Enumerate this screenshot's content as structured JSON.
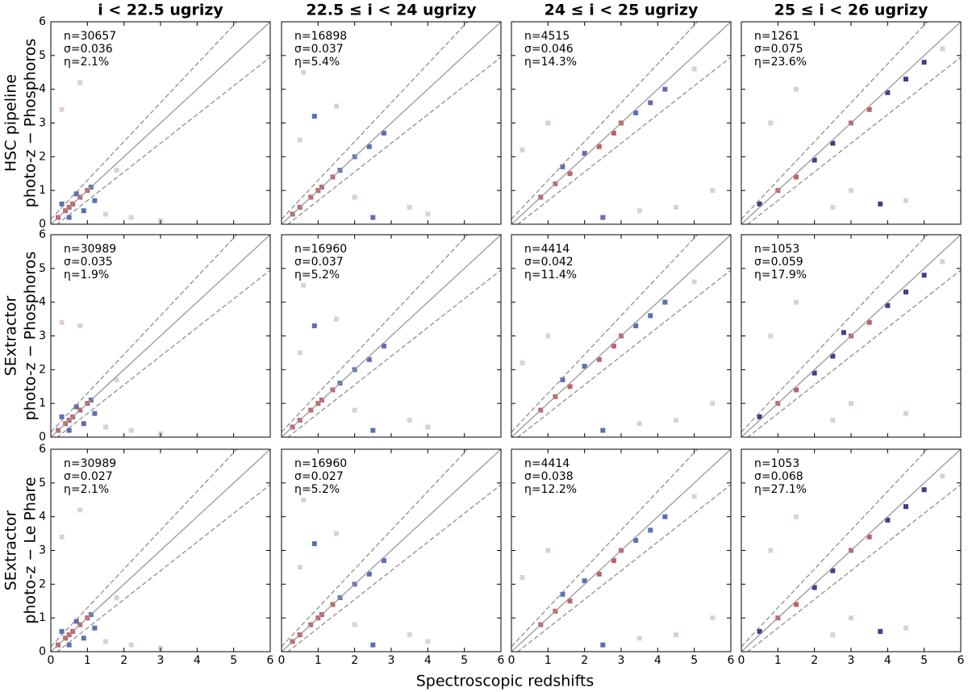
{
  "xlabel": "Spectroscopic redshifts",
  "chart_data": [
    {
      "type": "hexbin",
      "title": "i < 22.5 ugrizy",
      "ylabel": [
        "HSC pipeline",
        "photo-z − Phosphoros"
      ],
      "stats": [
        "n=30657",
        "σ=0.036",
        "η=2.1%"
      ],
      "xlim": [
        0,
        6
      ],
      "ylim": [
        0,
        6
      ],
      "xticks": [
        0,
        1,
        2,
        3,
        4,
        5,
        6
      ],
      "yticks": [
        0,
        1,
        2,
        3,
        4,
        5,
        6
      ],
      "xtick_labels": false,
      "ytick_labels": true,
      "outlier_cut": 0.15,
      "series": [
        {
          "color": "#dccfdc",
          "x": [
            1.5,
            2.2,
            0.8,
            3.0,
            1.8,
            0.3
          ],
          "y": [
            0.3,
            0.2,
            4.2,
            0.1,
            1.6,
            3.4
          ]
        },
        {
          "color": "#5b6fb5",
          "x": [
            0.3,
            0.7,
            1.1,
            0.9,
            0.5,
            1.2
          ],
          "y": [
            0.6,
            0.9,
            1.1,
            0.4,
            0.2,
            0.7
          ]
        },
        {
          "color": "#c0606a",
          "x": [
            0.2,
            0.4,
            0.6,
            0.8,
            1.0,
            0.5
          ],
          "y": [
            0.2,
            0.4,
            0.6,
            0.8,
            1.0,
            0.5
          ]
        }
      ]
    },
    {
      "type": "hexbin",
      "title": "22.5 ≤ i < 24 ugrizy",
      "stats": [
        "n=16898",
        "σ=0.037",
        "η=5.4%"
      ],
      "xlim": [
        0,
        6
      ],
      "ylim": [
        0,
        6
      ],
      "xticks": [
        0,
        1,
        2,
        3,
        4,
        5,
        6
      ],
      "yticks": [
        0,
        1,
        2,
        3,
        4,
        5,
        6
      ],
      "xtick_labels": false,
      "ytick_labels": false,
      "outlier_cut": 0.15,
      "series": [
        {
          "color": "#dccfdc",
          "x": [
            3.5,
            0.5,
            1.5,
            4.0,
            2.0,
            0.6
          ],
          "y": [
            0.5,
            2.5,
            3.5,
            0.3,
            0.8,
            4.5
          ]
        },
        {
          "color": "#5b6fb5",
          "x": [
            1.6,
            2.0,
            2.4,
            2.8,
            2.5,
            0.9
          ],
          "y": [
            1.6,
            2.0,
            2.3,
            2.7,
            0.2,
            3.2
          ]
        },
        {
          "color": "#c0606a",
          "x": [
            0.5,
            0.8,
            1.1,
            1.4,
            0.3,
            1.0
          ],
          "y": [
            0.5,
            0.8,
            1.1,
            1.4,
            0.3,
            1.0
          ]
        }
      ]
    },
    {
      "type": "hexbin",
      "title": "24 ≤ i < 25 ugrizy",
      "stats": [
        "n=4515",
        "σ=0.046",
        "η=14.3%"
      ],
      "xlim": [
        0,
        6
      ],
      "ylim": [
        0,
        6
      ],
      "xticks": [
        0,
        1,
        2,
        3,
        4,
        5,
        6
      ],
      "yticks": [
        0,
        1,
        2,
        3,
        4,
        5,
        6
      ],
      "xtick_labels": false,
      "ytick_labels": false,
      "outlier_cut": 0.15,
      "series": [
        {
          "color": "#dccfdc",
          "x": [
            0.3,
            4.5,
            5.0,
            1.0,
            3.5,
            5.5
          ],
          "y": [
            2.2,
            0.5,
            4.6,
            3.0,
            0.4,
            1.0
          ]
        },
        {
          "color": "#5b6fb5",
          "x": [
            2.0,
            3.4,
            3.8,
            4.2,
            2.5,
            1.4
          ],
          "y": [
            2.1,
            3.3,
            3.6,
            4.0,
            0.2,
            1.7
          ]
        },
        {
          "color": "#c0606a",
          "x": [
            0.8,
            1.2,
            1.6,
            2.4,
            2.8,
            3.0
          ],
          "y": [
            0.8,
            1.2,
            1.5,
            2.3,
            2.7,
            3.0
          ]
        }
      ]
    },
    {
      "type": "hexbin",
      "title": "25 ≤ i < 26 ugrizy",
      "stats": [
        "n=1261",
        "σ=0.075",
        "η=23.6%"
      ],
      "xlim": [
        0,
        6
      ],
      "ylim": [
        0,
        6
      ],
      "xticks": [
        0,
        1,
        2,
        3,
        4,
        5,
        6
      ],
      "yticks": [
        0,
        1,
        2,
        3,
        4,
        5,
        6
      ],
      "xtick_labels": false,
      "ytick_labels": false,
      "outlier_cut": 0.15,
      "series": [
        {
          "color": "#dccfdc",
          "x": [
            0.8,
            2.5,
            4.5,
            5.5,
            1.5,
            3.0
          ],
          "y": [
            3.0,
            0.5,
            0.7,
            5.2,
            4.0,
            1.0
          ]
        },
        {
          "color": "#4a3a8c",
          "x": [
            0.5,
            2.0,
            2.5,
            4.0,
            4.5,
            5.0,
            3.8
          ],
          "y": [
            0.6,
            1.9,
            2.4,
            3.9,
            4.3,
            4.8,
            0.6
          ]
        },
        {
          "color": "#c0606a",
          "x": [
            1.0,
            1.5,
            3.0,
            3.5
          ],
          "y": [
            1.0,
            1.4,
            3.0,
            3.4
          ]
        }
      ]
    },
    {
      "type": "hexbin",
      "ylabel": [
        "SExtractor",
        "photo-z − Phosphoros"
      ],
      "stats": [
        "n=30989",
        "σ=0.035",
        "η=1.9%"
      ],
      "xlim": [
        0,
        6
      ],
      "ylim": [
        0,
        6
      ],
      "xticks": [
        0,
        1,
        2,
        3,
        4,
        5,
        6
      ],
      "yticks": [
        0,
        1,
        2,
        3,
        4,
        5,
        6
      ],
      "xtick_labels": false,
      "ytick_labels": true,
      "outlier_cut": 0.15,
      "series": [
        {
          "color": "#dccfdc",
          "x": [
            1.5,
            2.2,
            0.8,
            3.0,
            1.8,
            0.3
          ],
          "y": [
            0.3,
            0.2,
            3.3,
            0.1,
            1.7,
            3.4
          ]
        },
        {
          "color": "#5b6fb5",
          "x": [
            0.3,
            0.7,
            1.1,
            0.9,
            0.5,
            1.2
          ],
          "y": [
            0.6,
            0.9,
            1.1,
            0.4,
            0.2,
            0.7
          ]
        },
        {
          "color": "#c0606a",
          "x": [
            0.2,
            0.4,
            0.6,
            0.8,
            1.0,
            0.5
          ],
          "y": [
            0.2,
            0.4,
            0.6,
            0.8,
            1.0,
            0.5
          ]
        }
      ]
    },
    {
      "type": "hexbin",
      "stats": [
        "n=16960",
        "σ=0.037",
        "η=5.2%"
      ],
      "xlim": [
        0,
        6
      ],
      "ylim": [
        0,
        6
      ],
      "xticks": [
        0,
        1,
        2,
        3,
        4,
        5,
        6
      ],
      "yticks": [
        0,
        1,
        2,
        3,
        4,
        5,
        6
      ],
      "xtick_labels": false,
      "ytick_labels": false,
      "outlier_cut": 0.15,
      "series": [
        {
          "color": "#dccfdc",
          "x": [
            3.5,
            0.5,
            1.5,
            4.0,
            2.0,
            0.6
          ],
          "y": [
            0.5,
            2.5,
            3.5,
            0.3,
            0.8,
            4.5
          ]
        },
        {
          "color": "#5b6fb5",
          "x": [
            1.6,
            2.0,
            2.4,
            2.8,
            2.5,
            0.9
          ],
          "y": [
            1.6,
            2.0,
            2.3,
            2.7,
            0.2,
            3.3
          ]
        },
        {
          "color": "#c0606a",
          "x": [
            0.5,
            0.8,
            1.1,
            1.4,
            0.3,
            1.0
          ],
          "y": [
            0.5,
            0.8,
            1.1,
            1.4,
            0.3,
            1.0
          ]
        }
      ]
    },
    {
      "type": "hexbin",
      "stats": [
        "n=4414",
        "σ=0.042",
        "η=11.4%"
      ],
      "xlim": [
        0,
        6
      ],
      "ylim": [
        0,
        6
      ],
      "xticks": [
        0,
        1,
        2,
        3,
        4,
        5,
        6
      ],
      "yticks": [
        0,
        1,
        2,
        3,
        4,
        5,
        6
      ],
      "xtick_labels": false,
      "ytick_labels": false,
      "outlier_cut": 0.15,
      "series": [
        {
          "color": "#dccfdc",
          "x": [
            0.3,
            4.5,
            5.0,
            1.0,
            3.5,
            5.5
          ],
          "y": [
            2.2,
            0.5,
            4.6,
            3.0,
            0.4,
            1.0
          ]
        },
        {
          "color": "#5b6fb5",
          "x": [
            2.0,
            3.4,
            3.8,
            4.2,
            2.5,
            1.4
          ],
          "y": [
            2.1,
            3.3,
            3.6,
            4.0,
            0.2,
            1.7
          ]
        },
        {
          "color": "#c0606a",
          "x": [
            0.8,
            1.2,
            1.6,
            2.4,
            2.8,
            3.0
          ],
          "y": [
            0.8,
            1.2,
            1.5,
            2.3,
            2.7,
            3.0
          ]
        }
      ]
    },
    {
      "type": "hexbin",
      "stats": [
        "n=1053",
        "σ=0.059",
        "η=17.9%"
      ],
      "xlim": [
        0,
        6
      ],
      "ylim": [
        0,
        6
      ],
      "xticks": [
        0,
        1,
        2,
        3,
        4,
        5,
        6
      ],
      "yticks": [
        0,
        1,
        2,
        3,
        4,
        5,
        6
      ],
      "xtick_labels": false,
      "ytick_labels": false,
      "outlier_cut": 0.15,
      "series": [
        {
          "color": "#dccfdc",
          "x": [
            0.8,
            2.5,
            4.5,
            5.5,
            1.5,
            3.0
          ],
          "y": [
            3.0,
            0.5,
            0.7,
            5.2,
            4.0,
            1.0
          ]
        },
        {
          "color": "#4a3a8c",
          "x": [
            0.5,
            2.0,
            2.5,
            4.0,
            4.5,
            5.0,
            2.8
          ],
          "y": [
            0.6,
            1.9,
            2.4,
            3.9,
            4.3,
            4.8,
            3.1
          ]
        },
        {
          "color": "#c0606a",
          "x": [
            1.0,
            1.5,
            3.0,
            3.5
          ],
          "y": [
            1.0,
            1.4,
            3.0,
            3.4
          ]
        }
      ]
    },
    {
      "type": "hexbin",
      "ylabel": [
        "SExtractor",
        "photo-z − Le Phare"
      ],
      "stats": [
        "n=30989",
        "σ=0.027",
        "η=2.1%"
      ],
      "xlim": [
        0,
        6
      ],
      "ylim": [
        0,
        6
      ],
      "xticks": [
        0,
        1,
        2,
        3,
        4,
        5,
        6
      ],
      "yticks": [
        0,
        1,
        2,
        3,
        4,
        5,
        6
      ],
      "xtick_labels": true,
      "ytick_labels": true,
      "outlier_cut": 0.15,
      "series": [
        {
          "color": "#dccfdc",
          "x": [
            1.5,
            2.2,
            0.8,
            3.0,
            1.8,
            0.3
          ],
          "y": [
            0.3,
            0.2,
            4.2,
            0.1,
            1.6,
            3.4
          ]
        },
        {
          "color": "#5b6fb5",
          "x": [
            0.3,
            0.7,
            1.1,
            0.9,
            0.5,
            1.2
          ],
          "y": [
            0.6,
            0.9,
            1.1,
            0.4,
            0.2,
            0.7
          ]
        },
        {
          "color": "#c0606a",
          "x": [
            0.2,
            0.4,
            0.6,
            0.8,
            1.0,
            0.5
          ],
          "y": [
            0.2,
            0.4,
            0.6,
            0.8,
            1.0,
            0.5
          ]
        }
      ]
    },
    {
      "type": "hexbin",
      "stats": [
        "n=16960",
        "σ=0.027",
        "η=5.2%"
      ],
      "xlim": [
        0,
        6
      ],
      "ylim": [
        0,
        6
      ],
      "xticks": [
        0,
        1,
        2,
        3,
        4,
        5,
        6
      ],
      "yticks": [
        0,
        1,
        2,
        3,
        4,
        5,
        6
      ],
      "xtick_labels": true,
      "ytick_labels": false,
      "outlier_cut": 0.15,
      "series": [
        {
          "color": "#dccfdc",
          "x": [
            3.5,
            0.5,
            1.5,
            4.0,
            2.0,
            0.6
          ],
          "y": [
            0.5,
            2.5,
            3.5,
            0.3,
            0.8,
            4.5
          ]
        },
        {
          "color": "#5b6fb5",
          "x": [
            1.6,
            2.0,
            2.4,
            2.8,
            2.5,
            0.9
          ],
          "y": [
            1.6,
            2.0,
            2.3,
            2.7,
            0.2,
            3.2
          ]
        },
        {
          "color": "#c0606a",
          "x": [
            0.5,
            0.8,
            1.1,
            1.4,
            0.3,
            1.0
          ],
          "y": [
            0.5,
            0.8,
            1.1,
            1.4,
            0.3,
            1.0
          ]
        }
      ]
    },
    {
      "type": "hexbin",
      "stats": [
        "n=4414",
        "σ=0.038",
        "η=12.2%"
      ],
      "xlim": [
        0,
        6
      ],
      "ylim": [
        0,
        6
      ],
      "xticks": [
        0,
        1,
        2,
        3,
        4,
        5,
        6
      ],
      "yticks": [
        0,
        1,
        2,
        3,
        4,
        5,
        6
      ],
      "xtick_labels": true,
      "ytick_labels": false,
      "outlier_cut": 0.15,
      "series": [
        {
          "color": "#dccfdc",
          "x": [
            0.3,
            4.5,
            5.0,
            1.0,
            3.5,
            5.5
          ],
          "y": [
            2.2,
            0.5,
            4.6,
            3.0,
            0.4,
            1.0
          ]
        },
        {
          "color": "#5b6fb5",
          "x": [
            2.0,
            3.4,
            3.8,
            4.2,
            2.5,
            1.4
          ],
          "y": [
            2.1,
            3.3,
            3.6,
            4.0,
            0.2,
            1.7
          ]
        },
        {
          "color": "#c0606a",
          "x": [
            0.8,
            1.2,
            1.6,
            2.4,
            2.8,
            3.0
          ],
          "y": [
            0.8,
            1.2,
            1.5,
            2.3,
            2.7,
            3.0
          ]
        }
      ]
    },
    {
      "type": "hexbin",
      "stats": [
        "n=1053",
        "σ=0.068",
        "η=27.1%"
      ],
      "xlim": [
        0,
        6
      ],
      "ylim": [
        0,
        6
      ],
      "xticks": [
        0,
        1,
        2,
        3,
        4,
        5,
        6
      ],
      "yticks": [
        0,
        1,
        2,
        3,
        4,
        5,
        6
      ],
      "xtick_labels": true,
      "ytick_labels": false,
      "outlier_cut": 0.15,
      "series": [
        {
          "color": "#dccfdc",
          "x": [
            0.8,
            2.5,
            4.5,
            5.5,
            1.5,
            3.0
          ],
          "y": [
            3.0,
            0.5,
            0.7,
            5.2,
            4.0,
            1.0
          ]
        },
        {
          "color": "#4a3a8c",
          "x": [
            0.5,
            2.0,
            2.5,
            4.0,
            4.5,
            5.0,
            3.8
          ],
          "y": [
            0.6,
            1.9,
            2.4,
            3.9,
            4.3,
            4.8,
            0.6
          ]
        },
        {
          "color": "#c0606a",
          "x": [
            1.0,
            1.5,
            3.0,
            3.5
          ],
          "y": [
            1.0,
            1.4,
            3.0,
            3.4
          ]
        }
      ]
    }
  ]
}
